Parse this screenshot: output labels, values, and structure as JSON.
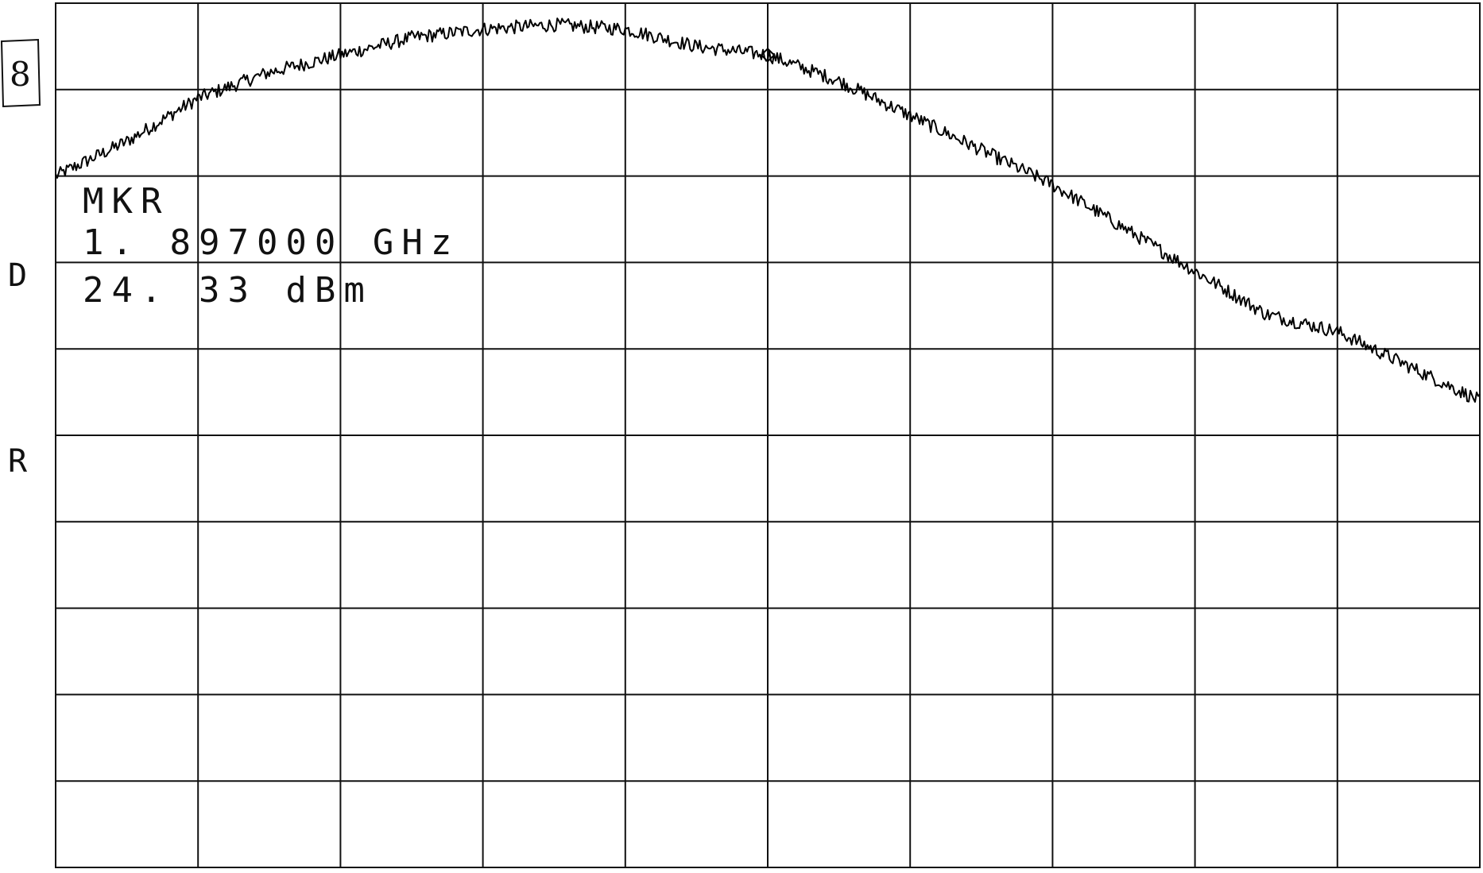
{
  "annotation": {
    "handwritten_label": "8"
  },
  "side_labels": [
    "D",
    "R"
  ],
  "marker_readout": {
    "line1": "MKR",
    "line2": "1. 897000  GHz",
    "line3": "24. 33  dBm"
  },
  "chart_data": {
    "type": "line",
    "title": "",
    "xlabel": "",
    "ylabel": "",
    "grid": true,
    "grid_divisions": {
      "x": 10,
      "y": 10
    },
    "xlim": [
      0,
      10
    ],
    "ylim": [
      0,
      10
    ],
    "marker": {
      "x": 5.0,
      "y": 9.4,
      "frequency": "1. 897000  GHz",
      "level": "24. 33  dBm"
    },
    "series": [
      {
        "x": [
          0,
          0.5,
          1,
          1.5,
          2,
          2.5,
          3,
          3.5,
          4,
          4.5,
          5,
          5.5,
          6,
          6.5,
          7,
          7.5,
          8,
          8.5,
          9,
          9.5,
          10
        ],
        "values": [
          8.0,
          8.4,
          8.9,
          9.2,
          9.4,
          9.6,
          9.7,
          9.75,
          9.7,
          9.5,
          9.4,
          9.1,
          8.7,
          8.3,
          7.9,
          7.4,
          6.9,
          6.4,
          6.2,
          5.8,
          5.4
        ],
        "noise": 0.08
      }
    ]
  }
}
